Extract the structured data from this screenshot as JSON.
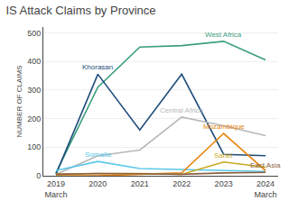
{
  "chart_data": {
    "type": "line",
    "title": "IS Attack Claims by Province",
    "y_label": "NUMBER OF CLAIMS",
    "categories": [
      "2019\nMarch",
      "2020",
      "2021",
      "2022",
      "2023",
      "2024\nMarch"
    ],
    "series": [
      {
        "name": "West Africa",
        "values": [
          10,
          310,
          450,
          455,
          470,
          405
        ],
        "color": "#3a9e7e"
      },
      {
        "name": "Khorasan",
        "values": [
          5,
          355,
          160,
          355,
          75,
          70
        ],
        "color": "#1e4d7a"
      },
      {
        "name": "Central Africa",
        "values": [
          5,
          70,
          90,
          205,
          175,
          140
        ],
        "color": "#b8b8b8"
      },
      {
        "name": "Somalia",
        "values": [
          18,
          50,
          25,
          22,
          20,
          15
        ],
        "color": "#5bc8e8"
      },
      {
        "name": "Mozambique",
        "values": [
          0,
          0,
          5,
          10,
          148,
          18
        ],
        "color": "#e8820c"
      },
      {
        "name": "Sahel",
        "values": [
          5,
          8,
          8,
          5,
          48,
          30
        ],
        "color": "#c8a820"
      },
      {
        "name": "East Asia",
        "values": [
          5,
          8,
          7,
          5,
          10,
          12
        ],
        "color": "#8b6040"
      }
    ],
    "ylim": [
      0,
      520
    ],
    "yticks": [
      0,
      100,
      200,
      300,
      400,
      500
    ],
    "grid": true
  }
}
